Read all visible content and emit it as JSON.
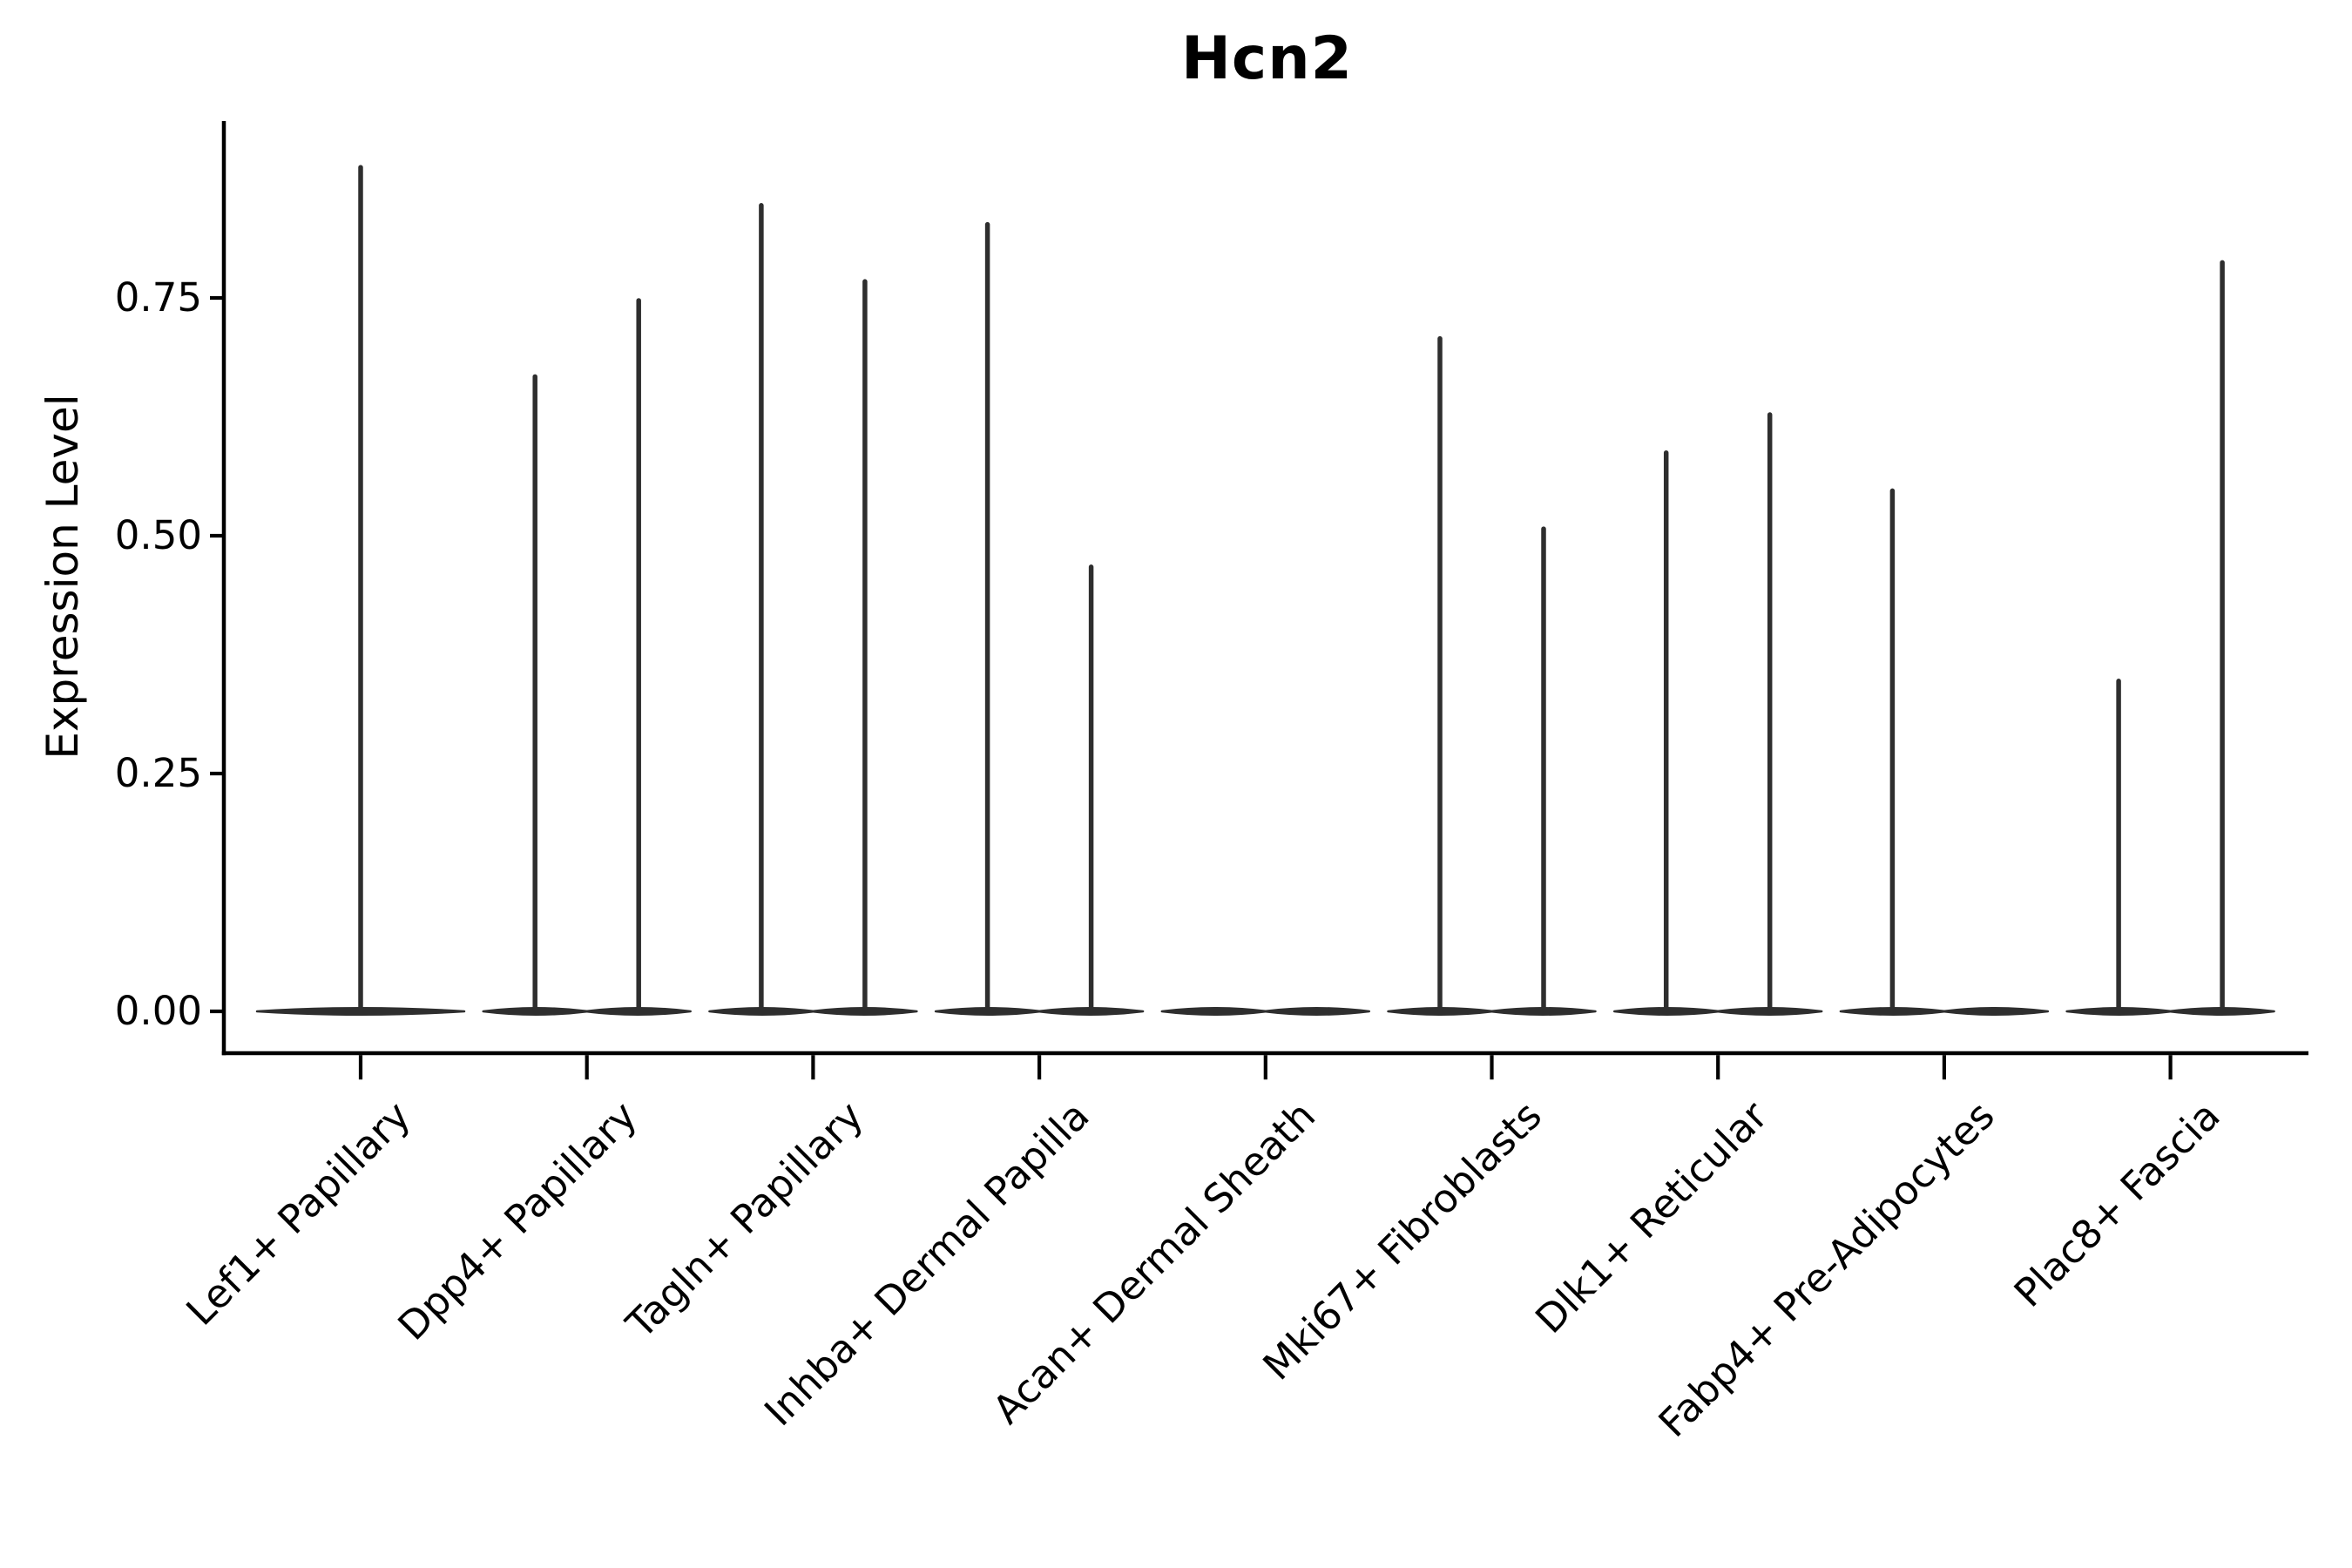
{
  "title": "Hcn2",
  "axes": {
    "ylabel": "Expression Level",
    "ytick_labels": [
      "0.00",
      "0.25",
      "0.50",
      "0.75"
    ]
  },
  "chart_data": {
    "type": "violin",
    "title": "Hcn2",
    "xlabel": "",
    "ylabel": "Expression Level",
    "ylim": [
      -0.044,
      0.936
    ],
    "yticks": [
      0,
      0.25,
      0.5,
      0.75
    ],
    "ytick_labels": [
      "0.00",
      "0.25",
      "0.50",
      "0.75"
    ],
    "grid": false,
    "legend": "none",
    "categories": [
      "Lef1+ Papillary",
      "Dpp4+ Papillary",
      "Tagln+ Papillary",
      "Inhba+ Dermal Papilla",
      "Acan+ Dermal Sheath",
      "Mki67+ Fibroblasts",
      "Dlk1+ Reticular",
      "Fabp4+ Pre-Adipocytes",
      "Plac8+ Fascia"
    ],
    "violins": [
      {
        "category": "Lef1+ Papillary",
        "layout": "single",
        "body_at_zero": true,
        "spikes": [
          {
            "pos": "center",
            "max": 0.89
          }
        ]
      },
      {
        "category": "Dpp4+ Papillary",
        "layout": "split",
        "body_at_zero": true,
        "spikes": [
          {
            "pos": "left",
            "max": 0.67
          },
          {
            "pos": "right",
            "max": 0.75
          }
        ]
      },
      {
        "category": "Tagln+ Papillary",
        "layout": "split",
        "body_at_zero": true,
        "spikes": [
          {
            "pos": "left",
            "max": 0.85
          },
          {
            "pos": "right",
            "max": 0.77
          }
        ]
      },
      {
        "category": "Inhba+ Dermal Papilla",
        "layout": "split",
        "body_at_zero": true,
        "spikes": [
          {
            "pos": "left",
            "max": 0.83
          },
          {
            "pos": "right",
            "max": 0.47
          }
        ]
      },
      {
        "category": "Acan+ Dermal Sheath",
        "layout": "split",
        "body_at_zero": true,
        "spikes": []
      },
      {
        "category": "Mki67+ Fibroblasts",
        "layout": "split",
        "body_at_zero": true,
        "spikes": [
          {
            "pos": "left",
            "max": 0.71
          },
          {
            "pos": "right",
            "max": 0.51
          }
        ]
      },
      {
        "category": "Dlk1+ Reticular",
        "layout": "split",
        "body_at_zero": true,
        "spikes": [
          {
            "pos": "left",
            "max": 0.59
          },
          {
            "pos": "right",
            "max": 0.63
          }
        ]
      },
      {
        "category": "Fabp4+ Pre-Adipocytes",
        "layout": "split",
        "body_at_zero": true,
        "spikes": [
          {
            "pos": "left",
            "max": 0.55
          }
        ]
      },
      {
        "category": "Plac8+ Fascia",
        "layout": "split",
        "body_at_zero": true,
        "spikes": [
          {
            "pos": "left",
            "max": 0.35
          },
          {
            "pos": "right",
            "max": 0.79
          }
        ]
      }
    ],
    "colors": {
      "violin": "#2e2e2e",
      "axis": "#000000",
      "text": "#000000",
      "background": "#ffffff"
    }
  }
}
